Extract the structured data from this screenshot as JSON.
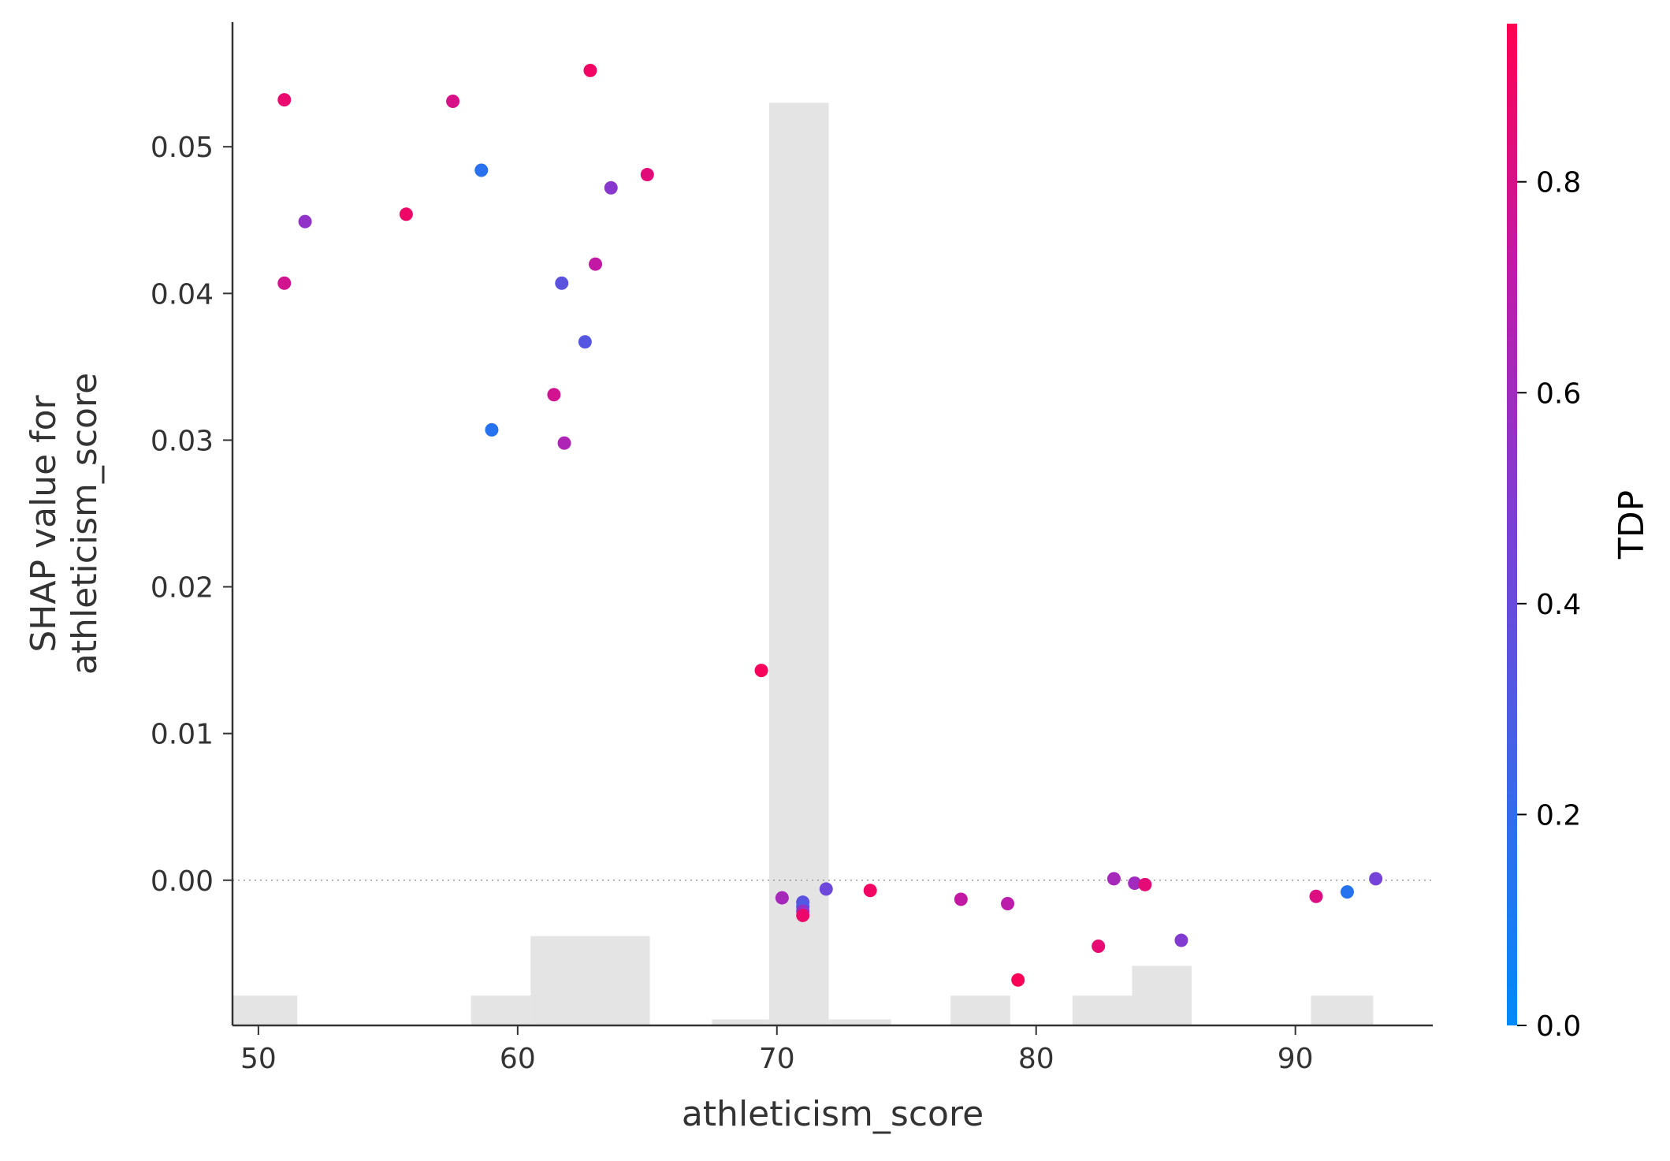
{
  "chart_data": {
    "type": "scatter",
    "title": "",
    "xlabel": "athleticism_score",
    "ylabel_lines": [
      "SHAP value for",
      "athleticism_score"
    ],
    "xlim": [
      49,
      95.3
    ],
    "ylim": [
      -0.0099,
      0.0585
    ],
    "xticks": [
      50,
      60,
      70,
      80,
      90
    ],
    "yticks": [
      0.0,
      0.01,
      0.02,
      0.03,
      0.04,
      0.05
    ],
    "ytick_labels": [
      "0.00",
      "0.01",
      "0.02",
      "0.03",
      "0.04",
      "0.05"
    ],
    "grid": false,
    "zero_line": true,
    "colorbar": {
      "label": "TDP",
      "ticks": [
        0.0,
        0.2,
        0.4,
        0.6,
        0.8
      ],
      "tick_labels": [
        "0.0",
        "0.2",
        "0.4",
        "0.6",
        "0.8"
      ],
      "range": [
        0.0,
        0.95
      ],
      "colormap": [
        "#008bfb",
        "#ff0051"
      ]
    },
    "histogram": {
      "bins": [
        {
          "x0": 49.0,
          "x1": 51.5,
          "count": 1
        },
        {
          "x0": 58.2,
          "x1": 60.5,
          "count": 1
        },
        {
          "x0": 60.5,
          "x1": 65.1,
          "count": 3
        },
        {
          "x0": 67.5,
          "x1": 69.7,
          "count": 0.2
        },
        {
          "x0": 69.7,
          "x1": 72.0,
          "count": 31
        },
        {
          "x0": 72.0,
          "x1": 74.4,
          "count": 0.2
        },
        {
          "x0": 76.7,
          "x1": 79.0,
          "count": 1
        },
        {
          "x0": 81.4,
          "x1": 83.7,
          "count": 1
        },
        {
          "x0": 83.7,
          "x1": 86.0,
          "count": 2
        },
        {
          "x0": 90.6,
          "x1": 93.0,
          "count": 1
        }
      ],
      "max_count": 31,
      "max_value": 0.053
    },
    "points": [
      {
        "x": 51.0,
        "y": 0.0532,
        "c": 0.87
      },
      {
        "x": 51.0,
        "y": 0.0407,
        "c": 0.78
      },
      {
        "x": 51.8,
        "y": 0.0449,
        "c": 0.55
      },
      {
        "x": 55.7,
        "y": 0.0454,
        "c": 0.89
      },
      {
        "x": 57.5,
        "y": 0.0531,
        "c": 0.8
      },
      {
        "x": 58.6,
        "y": 0.0484,
        "c": 0.16
      },
      {
        "x": 59.0,
        "y": 0.0307,
        "c": 0.15
      },
      {
        "x": 61.4,
        "y": 0.0331,
        "c": 0.78
      },
      {
        "x": 61.7,
        "y": 0.0407,
        "c": 0.35
      },
      {
        "x": 61.8,
        "y": 0.0298,
        "c": 0.65
      },
      {
        "x": 62.6,
        "y": 0.0367,
        "c": 0.33
      },
      {
        "x": 62.8,
        "y": 0.0552,
        "c": 0.9
      },
      {
        "x": 63.0,
        "y": 0.042,
        "c": 0.72
      },
      {
        "x": 63.6,
        "y": 0.0472,
        "c": 0.52
      },
      {
        "x": 65.0,
        "y": 0.0481,
        "c": 0.84
      },
      {
        "x": 69.4,
        "y": 0.0143,
        "c": 0.92
      },
      {
        "x": 70.2,
        "y": -0.0012,
        "c": 0.62
      },
      {
        "x": 71.0,
        "y": -0.0015,
        "c": 0.35
      },
      {
        "x": 71.0,
        "y": -0.0018,
        "c": 0.3
      },
      {
        "x": 71.0,
        "y": -0.0021,
        "c": 0.55
      },
      {
        "x": 71.0,
        "y": -0.0024,
        "c": 0.88
      },
      {
        "x": 71.9,
        "y": -0.0006,
        "c": 0.42
      },
      {
        "x": 73.6,
        "y": -0.0007,
        "c": 0.9
      },
      {
        "x": 77.1,
        "y": -0.0013,
        "c": 0.72
      },
      {
        "x": 78.9,
        "y": -0.0016,
        "c": 0.7
      },
      {
        "x": 79.3,
        "y": -0.0068,
        "c": 0.93
      },
      {
        "x": 82.4,
        "y": -0.0045,
        "c": 0.86
      },
      {
        "x": 83.0,
        "y": 0.0001,
        "c": 0.62
      },
      {
        "x": 83.8,
        "y": -0.0002,
        "c": 0.6
      },
      {
        "x": 84.2,
        "y": -0.0003,
        "c": 0.85
      },
      {
        "x": 85.6,
        "y": -0.0041,
        "c": 0.5
      },
      {
        "x": 90.8,
        "y": -0.0011,
        "c": 0.82
      },
      {
        "x": 92.0,
        "y": -0.0008,
        "c": 0.15
      },
      {
        "x": 93.1,
        "y": 0.0001,
        "c": 0.45
      }
    ]
  }
}
